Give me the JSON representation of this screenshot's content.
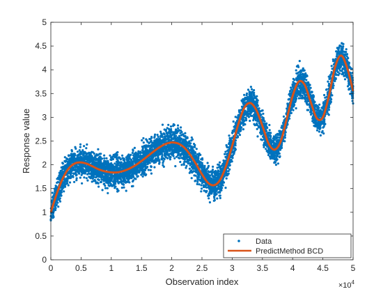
{
  "colors": {
    "data": "#0072BD",
    "fit": "#D95319",
    "axis": "#262626",
    "background": "#ffffff"
  },
  "chart_data": {
    "type": "scatter",
    "title": "",
    "xlabel": "Observation index",
    "ylabel": "Response value",
    "x_exponent_label": "×10",
    "x_exponent_power": "4",
    "xlim": [
      0,
      50000
    ],
    "ylim": [
      0,
      5
    ],
    "x_tick_values": [
      0,
      5000,
      10000,
      15000,
      20000,
      25000,
      30000,
      35000,
      40000,
      45000,
      50000
    ],
    "x_tick_labels": [
      "0",
      "0.5",
      "1",
      "1.5",
      "2",
      "2.5",
      "3",
      "3.5",
      "4",
      "4.5",
      "5"
    ],
    "y_tick_values": [
      0,
      0.5,
      1,
      1.5,
      2,
      2.5,
      3,
      3.5,
      4,
      4.5,
      5
    ],
    "y_tick_labels": [
      "0",
      "0.5",
      "1",
      "1.5",
      "2",
      "2.5",
      "3",
      "3.5",
      "4",
      "4.5",
      "5"
    ],
    "grid": false,
    "legend_position": "bottom-right",
    "series": [
      {
        "name": "Data",
        "type": "scatter",
        "x": [
          0,
          1000,
          2000,
          3000,
          4000,
          5000,
          6000,
          7000,
          8000,
          9000,
          10000,
          11000,
          12000,
          13000,
          14000,
          15000,
          16000,
          17000,
          18000,
          19000,
          20000,
          21000,
          22000,
          23000,
          24000,
          25000,
          26000,
          27000,
          28000,
          29000,
          30000,
          31000,
          32000,
          33000,
          34000,
          35000,
          36000,
          37000,
          38000,
          39000,
          40000,
          41000,
          42000,
          43000,
          44000,
          45000,
          46000,
          47000,
          48000,
          49000,
          50000
        ],
        "center": [
          1.0,
          1.4,
          1.72,
          1.93,
          2.03,
          2.05,
          2.02,
          1.96,
          1.9,
          1.86,
          1.84,
          1.84,
          1.87,
          1.92,
          1.99,
          2.08,
          2.18,
          2.28,
          2.37,
          2.44,
          2.47,
          2.45,
          2.37,
          2.22,
          2.02,
          1.8,
          1.62,
          1.57,
          1.68,
          1.98,
          2.4,
          2.85,
          3.2,
          3.3,
          3.15,
          2.82,
          2.45,
          2.32,
          2.48,
          2.95,
          3.45,
          3.75,
          3.68,
          3.32,
          2.98,
          3.0,
          3.45,
          4.05,
          4.3,
          4.05,
          3.55
        ],
        "spread": [
          0.45,
          0.55,
          0.55,
          0.55,
          0.55,
          0.55,
          0.55,
          0.55,
          0.55,
          0.55,
          0.55,
          0.55,
          0.55,
          0.55,
          0.55,
          0.55,
          0.55,
          0.55,
          0.55,
          0.6,
          0.62,
          0.6,
          0.55,
          0.55,
          0.55,
          0.55,
          0.55,
          0.55,
          0.55,
          0.55,
          0.55,
          0.55,
          0.55,
          0.55,
          0.55,
          0.5,
          0.5,
          0.5,
          0.5,
          0.5,
          0.55,
          0.55,
          0.55,
          0.5,
          0.5,
          0.5,
          0.55,
          0.55,
          0.6,
          0.55,
          0.55
        ],
        "outlier_range": [
          [
            0.4,
            1.6
          ],
          [
            3.0,
            3.2
          ],
          [
            4.9,
            5.0
          ]
        ]
      },
      {
        "name": "PredictMethod BCD",
        "type": "line",
        "x": [
          0,
          1000,
          2000,
          3000,
          4000,
          5000,
          6000,
          7000,
          8000,
          9000,
          10000,
          11000,
          12000,
          13000,
          14000,
          15000,
          16000,
          17000,
          18000,
          19000,
          20000,
          21000,
          22000,
          23000,
          24000,
          25000,
          26000,
          27000,
          28000,
          29000,
          30000,
          31000,
          32000,
          33000,
          34000,
          35000,
          36000,
          37000,
          38000,
          39000,
          40000,
          41000,
          42000,
          43000,
          44000,
          45000,
          46000,
          47000,
          48000,
          49000,
          50000
        ],
        "y": [
          1.0,
          1.4,
          1.72,
          1.93,
          2.03,
          2.05,
          2.02,
          1.96,
          1.9,
          1.86,
          1.84,
          1.84,
          1.87,
          1.92,
          1.99,
          2.08,
          2.18,
          2.28,
          2.37,
          2.44,
          2.47,
          2.45,
          2.37,
          2.22,
          2.02,
          1.8,
          1.62,
          1.57,
          1.68,
          1.98,
          2.4,
          2.85,
          3.2,
          3.3,
          3.15,
          2.82,
          2.45,
          2.32,
          2.48,
          2.95,
          3.45,
          3.75,
          3.68,
          3.32,
          2.98,
          3.0,
          3.45,
          4.05,
          4.3,
          4.05,
          3.55
        ]
      }
    ]
  }
}
